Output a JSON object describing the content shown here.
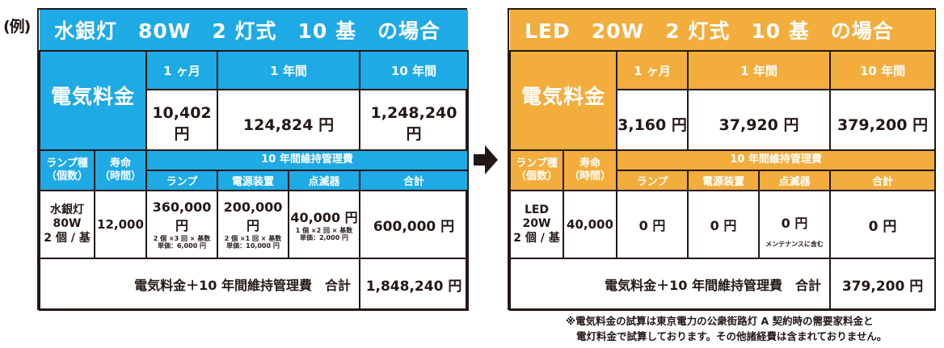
{
  "example_label": "(例)",
  "mercury": {
    "title": "水銀灯　80W　2 灯式　10 基　の場合",
    "periods": [
      "1 ヶ月",
      "1 年間",
      "10 年間"
    ],
    "electricity_label": "電気料金",
    "electricity": [
      "10,402 円",
      "124,824 円",
      "1,248,240 円"
    ],
    "lamp_type_label": "ランプ種\n（個数）",
    "life_label": "寿命\n（時間）",
    "maintenance_label": "10 年間維持管理費",
    "sub_headers": [
      "ランプ",
      "電源装置",
      "点滅器",
      "合計"
    ],
    "lamp_name": "水銀灯\n80W\n2 個 / 基",
    "life": "12,000",
    "lamp_cost": "360,000 円",
    "lamp_note": "2 個 ×3 回 × 基数\n単価：6,000 円",
    "ballast_cost": "200,000 円",
    "ballast_note": "2 個 ×1 回 × 基数\n単価：10,000 円",
    "switch_cost": "40,000 円",
    "switch_note": "1 個 ×2 回 × 基数\n単価：2,000 円",
    "maintenance_total": "600,000 円",
    "sum_label": "電気料金＋10 年間維持管理費　合計",
    "sum_value": "1,848,240 円"
  },
  "led": {
    "title": "LED　20W　2 灯式　10 基　の場合",
    "periods": [
      "1 ヶ月",
      "1 年間",
      "10 年間"
    ],
    "electricity_label": "電気料金",
    "electricity": [
      "3,160 円",
      "37,920 円",
      "379,200 円"
    ],
    "lamp_type_label": "ランプ種\n（個数）",
    "life_label": "寿命\n（時間）",
    "maintenance_label": "10 年間維持管理費",
    "sub_headers": [
      "ランプ",
      "電源装置",
      "点滅器",
      "合計"
    ],
    "lamp_name": "LED\n20W\n2 個 / 基",
    "life": "40,000",
    "lamp_cost": "0 円",
    "ballast_cost": "0 円",
    "switch_cost": "0 円",
    "switch_note": "メンテナンスに含む",
    "maintenance_total": "0 円",
    "sum_label": "電気料金＋10 年間維持管理費　合計",
    "sum_value": "379,200 円"
  },
  "arrow_icon": "right-arrow-icon",
  "footnote": {
    "line1": "※電気料金の試算は東京電力の公衆街路灯 A 契約時の需要家料金と",
    "line2": "電灯料金で試算しております。その他諸経費は含まれておりません。"
  },
  "colors": {
    "mercury_accent": "#1eaae5",
    "led_accent": "#f2ad3c",
    "text": "#231815"
  }
}
